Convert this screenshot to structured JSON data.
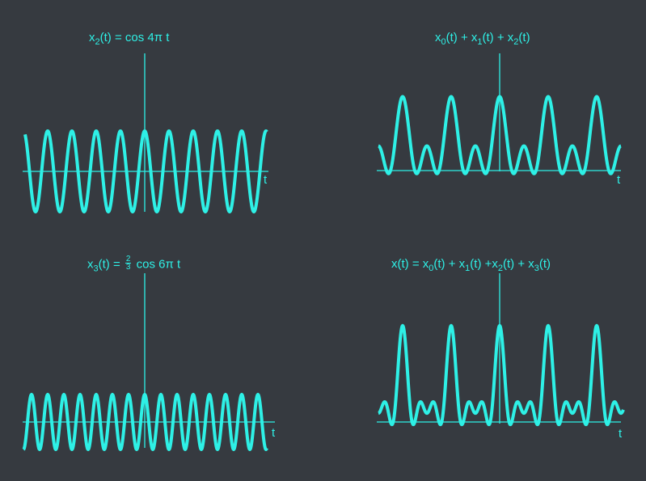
{
  "colors": {
    "background": "#363a40",
    "stroke": "#2ef0e6"
  },
  "axis_label": "t",
  "panels": [
    {
      "id": "x2",
      "title": {
        "pre": "x",
        "sub": "2",
        "post": "(t)  =  cos 4π t"
      },
      "harmonics": [
        {
          "k": 2,
          "a": 1
        }
      ],
      "dc": 0,
      "cycles": 10
    },
    {
      "id": "sum012",
      "title": {
        "parts": [
          {
            "t": "x",
            "sub": "0"
          },
          {
            "t": "(t)  +  "
          },
          {
            "t": "x",
            "sub": "1"
          },
          {
            "t": "(t)  +  "
          },
          {
            "t": "x",
            "sub": "2"
          },
          {
            "t": "(t)"
          }
        ]
      },
      "harmonics": [
        {
          "k": 1,
          "a": 1
        },
        {
          "k": 2,
          "a": 1
        }
      ],
      "dc": 1,
      "cycles": 5
    },
    {
      "id": "x3",
      "title": {
        "pre": "x",
        "sub": "3",
        "mid": "(t)  =  ",
        "frac_num": "2",
        "frac_den": "3",
        "post": " cos 6π t"
      },
      "harmonics": [
        {
          "k": 3,
          "a": 0.6667
        }
      ],
      "dc": 0,
      "cycles": 15
    },
    {
      "id": "sum0123",
      "title": {
        "parts": [
          {
            "t": "x(t)  =  "
          },
          {
            "t": "x",
            "sub": "0"
          },
          {
            "t": "(t)  +  "
          },
          {
            "t": "x",
            "sub": "1"
          },
          {
            "t": "(t)  +"
          },
          {
            "t": "x",
            "sub": "2"
          },
          {
            "t": "(t)  +  "
          },
          {
            "t": "x",
            "sub": "3"
          },
          {
            "t": "(t)"
          }
        ]
      },
      "harmonics": [
        {
          "k": 1,
          "a": 1
        },
        {
          "k": 2,
          "a": 1
        },
        {
          "k": 3,
          "a": 0.6667
        }
      ],
      "dc": 1,
      "cycles": 5
    }
  ]
}
